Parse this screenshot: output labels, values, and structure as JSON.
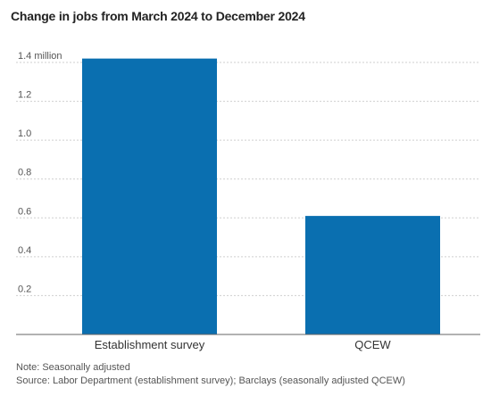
{
  "chart_data": {
    "type": "bar",
    "title": "Change in jobs from March 2024 to December 2024",
    "categories": [
      "Establishment survey",
      "QCEW"
    ],
    "values": [
      1.42,
      0.61
    ],
    "ylim": [
      0,
      1.4
    ],
    "yticks": [
      {
        "value": 0.2,
        "label": "0.2"
      },
      {
        "value": 0.4,
        "label": "0.4"
      },
      {
        "value": 0.6,
        "label": "0.6"
      },
      {
        "value": 0.8,
        "label": "0.8"
      },
      {
        "value": 1.0,
        "label": "1.0"
      },
      {
        "value": 1.2,
        "label": "1.2"
      },
      {
        "value": 1.4,
        "label": "1.4 million"
      }
    ],
    "grid": true,
    "bar_color": "#0a6fb0",
    "xlabel": "",
    "ylabel": ""
  },
  "notes": {
    "note": "Note: Seasonally adjusted",
    "source": "Source: Labor Department (establishment survey); Barclays (seasonally adjusted QCEW)"
  }
}
